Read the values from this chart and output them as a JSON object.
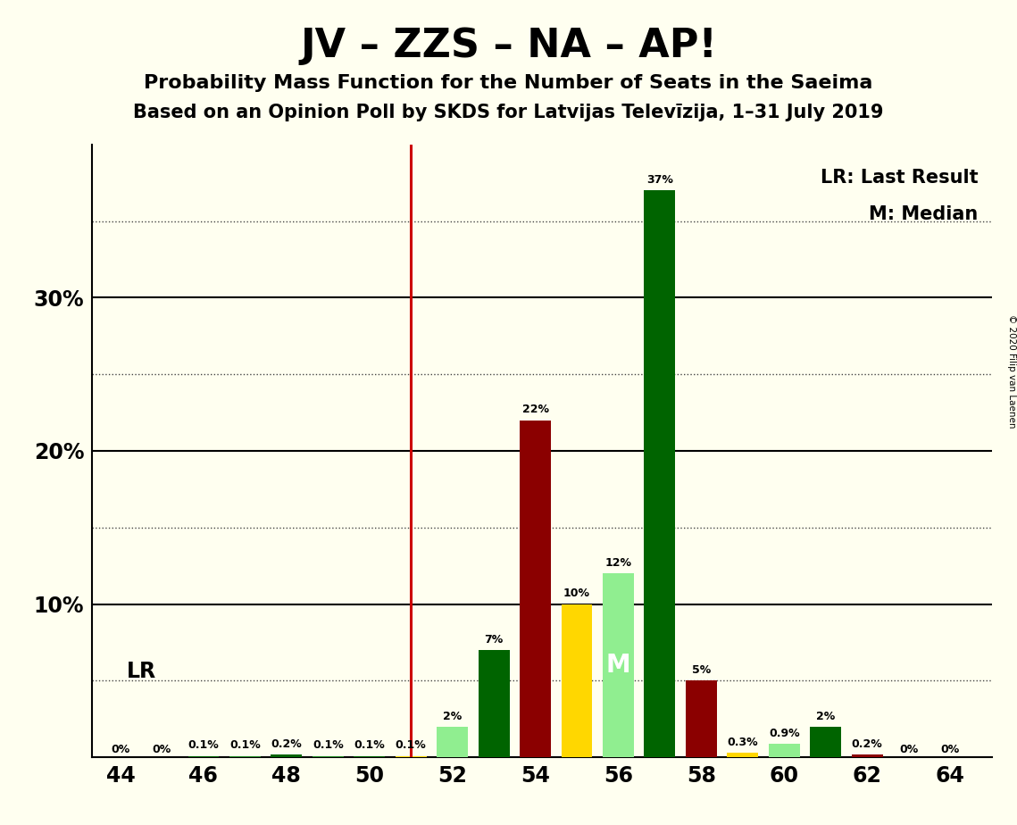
{
  "title": "JV – ZZS – NA – AP!",
  "subtitle1": "Probability Mass Function for the Number of Seats in the Saeima",
  "subtitle2": "Based on an Opinion Poll by SKDS for Latvijas Televīzija, 1–31 July 2019",
  "copyright": "© 2020 Filip van Laenen",
  "seats": [
    44,
    45,
    46,
    47,
    48,
    49,
    50,
    51,
    52,
    53,
    54,
    55,
    56,
    57,
    58,
    59,
    60,
    61,
    62,
    63,
    64
  ],
  "probabilities": [
    0.0,
    0.0,
    0.1,
    0.1,
    0.2,
    0.1,
    0.1,
    0.1,
    2.0,
    7.0,
    22.0,
    10.0,
    12.0,
    37.0,
    5.0,
    0.3,
    0.9,
    2.0,
    0.2,
    0.0,
    0.0
  ],
  "labels": [
    "0%",
    "0%",
    "0.1%",
    "0.1%",
    "0.2%",
    "0.1%",
    "0.1%",
    "0.1%",
    "2%",
    "7%",
    "22%",
    "10%",
    "12%",
    "37%",
    "5%",
    "0.3%",
    "0.9%",
    "2%",
    "0.2%",
    "0%",
    "0%"
  ],
  "colors": [
    "#006400",
    "#228B22",
    "#006400",
    "#228B22",
    "#006400",
    "#228B22",
    "#006400",
    "#FFD700",
    "#90EE90",
    "#006400",
    "#8B0000",
    "#FFD700",
    "#90EE90",
    "#006400",
    "#8B0000",
    "#FFD700",
    "#90EE90",
    "#006400",
    "#8B0000",
    "#FFD700",
    "#90EE90"
  ],
  "lr_seat": 51,
  "median_seat": 56,
  "lr_label": "LR",
  "median_label": "M",
  "legend_lr": "LR: Last Result",
  "legend_m": "M: Median",
  "ylim_max": 40,
  "ytick_positions": [
    0,
    5,
    10,
    15,
    20,
    25,
    30,
    35,
    40
  ],
  "solid_gridlines": [
    10,
    20,
    30
  ],
  "dotted_gridlines": [
    5,
    15,
    25,
    35
  ],
  "ytick_labels_shown": [
    10,
    20,
    30
  ],
  "xticks": [
    44,
    46,
    48,
    50,
    52,
    54,
    56,
    58,
    60,
    62,
    64
  ],
  "background_color": "#FFFFF0",
  "bar_width": 0.75,
  "lr_color": "#CC0000",
  "title_fontsize": 32,
  "subtitle1_fontsize": 16,
  "subtitle2_fontsize": 15,
  "tick_fontsize": 17,
  "label_fontsize": 9,
  "legend_fontsize": 15
}
